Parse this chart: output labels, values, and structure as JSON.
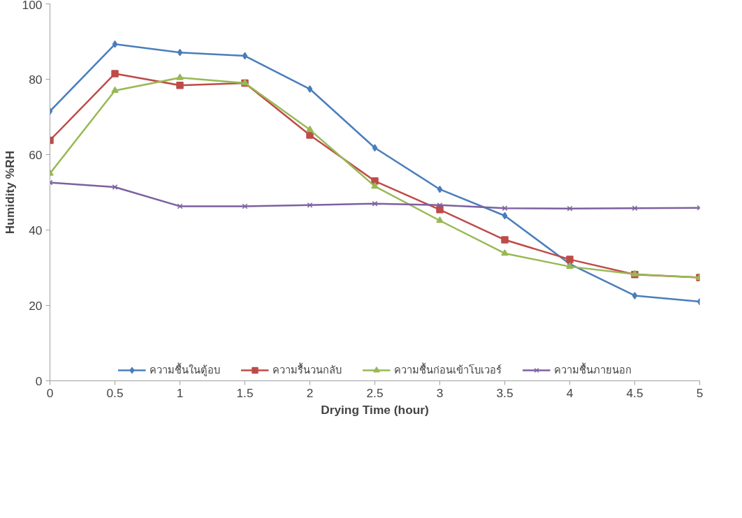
{
  "chart_data": {
    "type": "line",
    "xlabel": "Drying Time (hour)",
    "ylabel": "Humidity %RH",
    "x": [
      0,
      0.5,
      1,
      1.5,
      2,
      2.5,
      3,
      3.5,
      4,
      4.5,
      5
    ],
    "xlim": [
      0,
      5
    ],
    "xticks": [
      0,
      0.5,
      1,
      1.5,
      2,
      2.5,
      3,
      3.5,
      4,
      4.5,
      5
    ],
    "ylim": [
      0,
      100
    ],
    "yticks": [
      0,
      20,
      40,
      60,
      80,
      100
    ],
    "grid": false,
    "legend": "bottom",
    "line_style": "solid",
    "series": [
      {
        "name": "ความชื้นในตู้อบ",
        "color": "#4a7ebb",
        "marker": "diamond",
        "values": [
          71.5,
          89.3,
          87.1,
          86.2,
          77.4,
          61.8,
          50.8,
          43.8,
          31,
          22.6,
          21
        ]
      },
      {
        "name": "ความรื้นวนกลับ",
        "color": "#be4b48",
        "marker": "square",
        "values": [
          63.8,
          81.5,
          78.4,
          79,
          65.2,
          53,
          45.4,
          37.4,
          32.2,
          28.2,
          27.4
        ]
      },
      {
        "name": "ความชื้นก่อนเข้าโบเวอร์",
        "color": "#98b954",
        "marker": "triangle",
        "values": [
          55,
          77,
          80.4,
          79,
          66.6,
          51.6,
          42.5,
          33.8,
          30.3,
          28.3,
          27.4
        ]
      },
      {
        "name": "ความชื้นภายนอก",
        "color": "#7d60a0",
        "marker": "cross",
        "values": [
          52.6,
          51.4,
          46.3,
          46.3,
          46.6,
          47.0,
          46.6,
          45.8,
          45.7,
          45.8,
          45.9
        ]
      }
    ]
  }
}
